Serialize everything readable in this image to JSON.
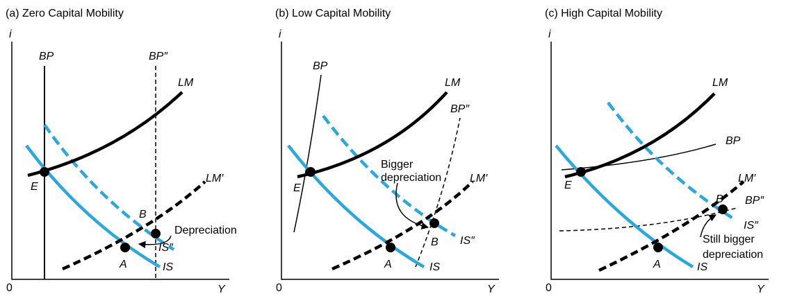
{
  "panels": [
    {
      "title": "(a) Zero Capital Mobility",
      "y_axis": "i",
      "x_axis": "Y",
      "origin": "0",
      "labels": [
        "BP",
        "BP″",
        "LM",
        "LM′",
        "E",
        "A",
        "B",
        "IS″",
        "IS"
      ],
      "annotation": [
        "Depreciation"
      ]
    },
    {
      "title": "(b) Low Capital Mobility",
      "y_axis": "i",
      "x_axis": "Y",
      "origin": "0",
      "labels": [
        "BP",
        "LM",
        "BP″",
        "LM′",
        "E",
        "B",
        "IS″",
        "A",
        "IS"
      ],
      "annotation": [
        "Bigger",
        "depreciation"
      ]
    },
    {
      "title": "(c) High Capital Mobility",
      "y_axis": "i",
      "x_axis": "Y",
      "origin": "0",
      "labels": [
        "LM",
        "BP",
        "LM′",
        "BP″",
        "E",
        "B",
        "IS″",
        "A",
        "IS"
      ],
      "annotation": [
        "Still bigger",
        "depreciation"
      ]
    }
  ]
}
